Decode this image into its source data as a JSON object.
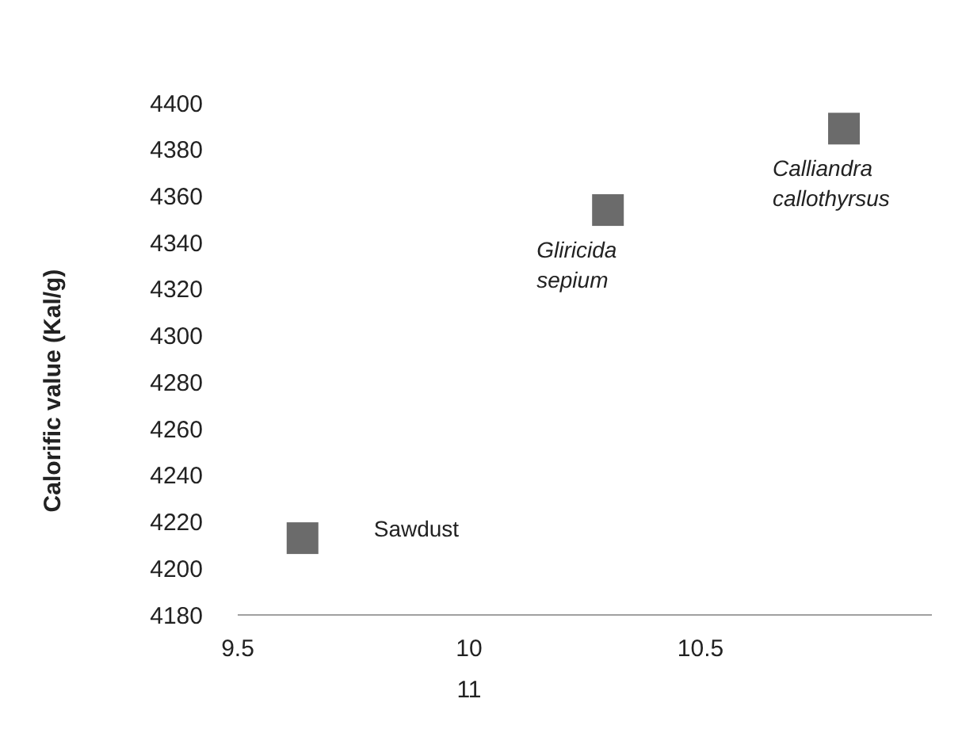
{
  "chart_data": {
    "type": "scatter",
    "ylabel": "Calorific value (Kal/g)",
    "xlabel": "11",
    "marker": "square",
    "series": [
      {
        "name": "Sawdust",
        "x": [
          9.64
        ],
        "values": [
          4213
        ],
        "color": "#6b6b6b"
      },
      {
        "name": "Gliricida\nsepium",
        "x": [
          10.3
        ],
        "values": [
          4354
        ],
        "color": "#6b6b6b"
      },
      {
        "name": "Calliandra\ncallothyrsus",
        "x": [
          10.81
        ],
        "values": [
          4389
        ],
        "color": "#6b6b6b"
      }
    ],
    "xlim": [
      9.5,
      11
    ],
    "xticks": [
      9.5,
      10,
      10.5
    ],
    "ylim": [
      4180,
      4400
    ],
    "yticks": [
      4180,
      4200,
      4220,
      4240,
      4260,
      4280,
      4300,
      4320,
      4340,
      4360,
      4380,
      4400
    ],
    "grid": false
  }
}
